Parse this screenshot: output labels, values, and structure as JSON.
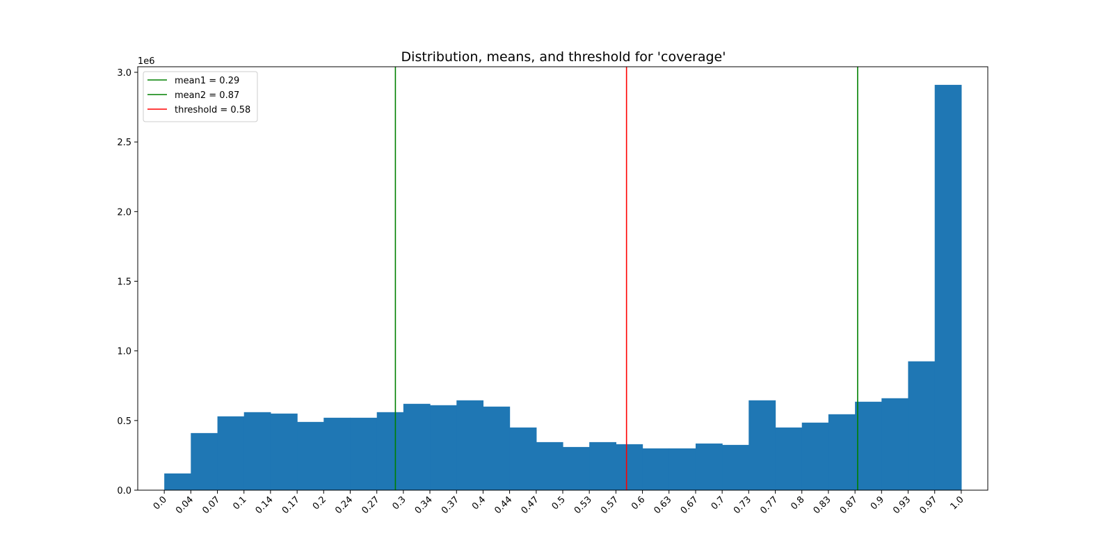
{
  "chart_data": {
    "type": "bar",
    "title": "Distribution, means, and threshold for 'coverage'",
    "xlabel": "",
    "ylabel": "",
    "y_offset_label": "1e6",
    "xlim": [
      -0.0333,
      1.0333
    ],
    "ylim": [
      0,
      3.04
    ],
    "x_ticks": [
      "0.0",
      "0.04",
      "0.07",
      "0.1",
      "0.14",
      "0.17",
      "0.2",
      "0.24",
      "0.27",
      "0.3",
      "0.34",
      "0.37",
      "0.4",
      "0.44",
      "0.47",
      "0.5",
      "0.53",
      "0.57",
      "0.6",
      "0.63",
      "0.67",
      "0.7",
      "0.73",
      "0.77",
      "0.8",
      "0.83",
      "0.87",
      "0.9",
      "0.93",
      "0.97",
      "1.0"
    ],
    "y_ticks": [
      "0.0",
      "0.5",
      "1.0",
      "1.5",
      "2.0",
      "2.5",
      "3.0"
    ],
    "bin_edges": [
      0,
      0.0333,
      0.0667,
      0.1,
      0.1333,
      0.1667,
      0.2,
      0.2333,
      0.2667,
      0.3,
      0.3333,
      0.3667,
      0.4,
      0.4333,
      0.4667,
      0.5,
      0.5333,
      0.5667,
      0.6,
      0.6333,
      0.6667,
      0.7,
      0.7333,
      0.7667,
      0.8,
      0.8333,
      0.8667,
      0.9,
      0.9333,
      0.9667,
      1.0
    ],
    "series": [
      {
        "color": "#1f77b4",
        "values": [
          0.12,
          0.41,
          0.53,
          0.56,
          0.55,
          0.49,
          0.52,
          0.52,
          0.56,
          0.62,
          0.61,
          0.645,
          0.6,
          0.45,
          0.345,
          0.31,
          0.345,
          0.33,
          0.3,
          0.3,
          0.335,
          0.325,
          0.645,
          0.45,
          0.485,
          0.545,
          0.635,
          0.66,
          0.925,
          2.91
        ]
      }
    ],
    "lines": [
      {
        "label": "mean1 = 0.29",
        "x": 0.29,
        "color": "#008000"
      },
      {
        "label": "mean2 = 0.87",
        "x": 0.87,
        "color": "#008000"
      },
      {
        "label": "threshold = 0.58",
        "x": 0.58,
        "color": "#ff0000"
      }
    ],
    "legend_position": "top-left",
    "grid": false
  }
}
